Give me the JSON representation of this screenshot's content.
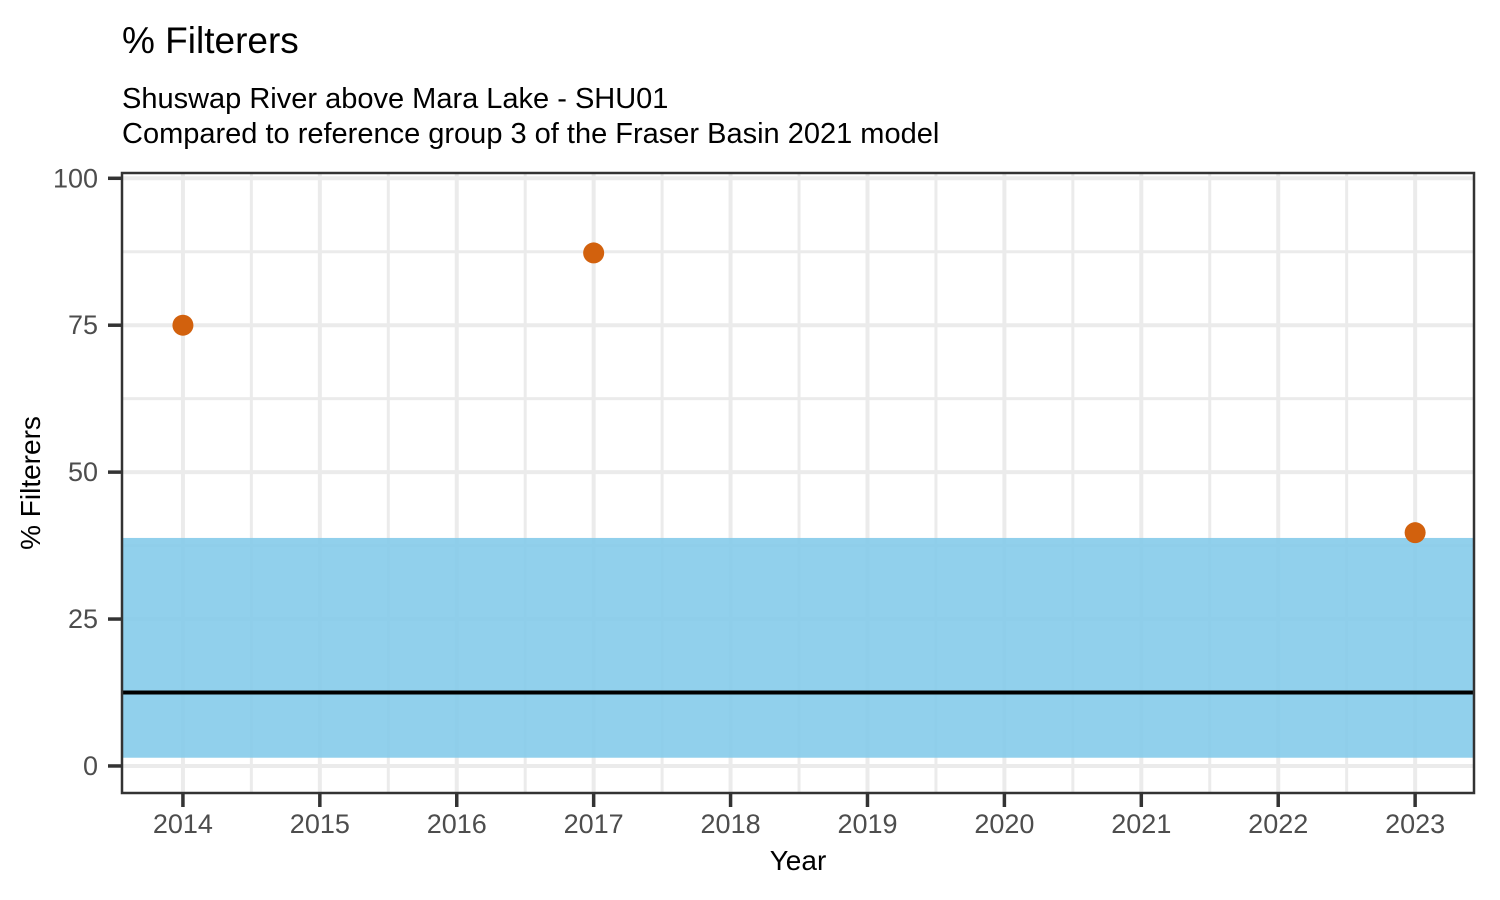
{
  "header": {
    "title": "% Filterers",
    "subtitle_line1": "Shuswap River above Mara Lake - SHU01",
    "subtitle_line2": "Compared to reference group 3 of the Fraser Basin 2021 model"
  },
  "chart_data": {
    "type": "scatter",
    "title": "% Filterers",
    "subtitle": [
      "Shuswap River above Mara Lake - SHU01",
      "Compared to reference group 3 of the Fraser Basin 2021 model"
    ],
    "xlabel": "Year",
    "ylabel": "% Filterers",
    "x_ticks": [
      2014,
      2015,
      2016,
      2017,
      2018,
      2019,
      2020,
      2021,
      2022,
      2023
    ],
    "y_ticks": [
      0,
      25,
      50,
      75,
      100
    ],
    "xlim": [
      2013.555,
      2023.43
    ],
    "ylim": [
      -4.6,
      100.9
    ],
    "grid": "major and minor, light gray, panel border on",
    "legend": "none",
    "points": [
      {
        "x": 2014,
        "y": 75
      },
      {
        "x": 2017,
        "y": 87.3
      },
      {
        "x": 2023,
        "y": 39.7
      }
    ],
    "reference_band": {
      "ymin": 1.4,
      "ymax": 38.8
    },
    "reference_line": {
      "y": 12.5
    }
  },
  "colors": {
    "point": "#D2610D",
    "band": "#85CBEA",
    "band_opacity": "0.9",
    "reference_line": "#000000",
    "grid": "#EBEBEB",
    "axis": "#333333",
    "tick_label": "#4D4D4D",
    "text": "#000000",
    "panel_background": "#FFFFFF",
    "page_background": "#FFFFFF"
  }
}
